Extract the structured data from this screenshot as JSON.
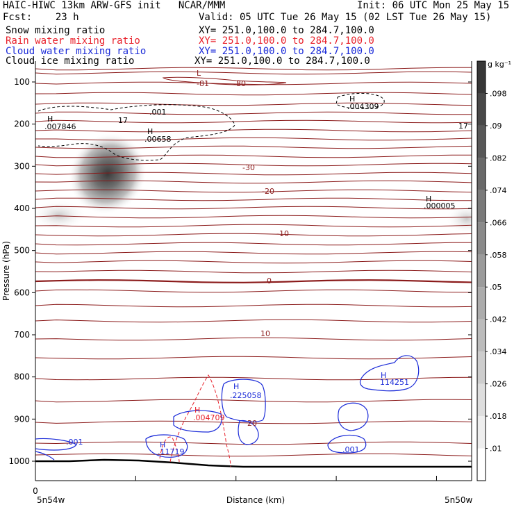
{
  "header": {
    "line1_left": "HAIC-HIWC 13km ARW-GFS init   NCAR/MMM",
    "line1_right": "Init: 06 UTC Mon 25 May 15",
    "line2_left": "Fcst:    23 h",
    "line2_right": "Valid: 05 UTC Tue 26 May 15 (02 LST Tue 26 May 15)",
    "fields": [
      {
        "name": "Snow mixing ratio",
        "xy": "XY= 251.0,100.0 to 284.7,100.0",
        "color": "#000000"
      },
      {
        "name": "Rain water mixing ratio",
        "xy": "XY= 251.0,100.0 to 284.7,100.0",
        "color": "#e8202a"
      },
      {
        "name": "Cloud water mixing ratio",
        "xy": "XY= 251.0,100.0 to 284.7,100.0",
        "color": "#1a2ad8"
      },
      {
        "name": "Cloud ice mixing ratio",
        "xy": "XY= 251.0,100.0 to 284.7,100.0",
        "color": "#000000"
      }
    ]
  },
  "chart_data": {
    "type": "heatmap",
    "xlabel": "Distance (km)",
    "ylabel": "Pressure (hPa)",
    "x_tick_left": "0",
    "x_endpoints": [
      "5n54w",
      "5n50w"
    ],
    "y_ticks": [
      100,
      200,
      300,
      400,
      500,
      600,
      700,
      800,
      900,
      1000
    ],
    "ylim": [
      1050,
      50
    ],
    "colorbar": {
      "unit": "g kg⁻¹",
      "levels": [
        0.01,
        0.018,
        0.026,
        0.034,
        0.042,
        0.05,
        0.058,
        0.066,
        0.074,
        0.082,
        0.09,
        0.098
      ],
      "labels": [
        ".01",
        ".018",
        ".026",
        ".034",
        ".042",
        ".05",
        ".058",
        ".066",
        ".074",
        ".082",
        ".09",
        ".098"
      ]
    },
    "temperature_contours": [
      -80,
      -30,
      -20,
      -10,
      0,
      10,
      20
    ],
    "labels": [
      {
        "text": "L",
        "color": "#8b1a1a"
      },
      {
        "text": "-81",
        "color": "#8b1a1a"
      },
      {
        "text": "-80",
        "color": "#8b1a1a"
      },
      {
        "text": "-30",
        "color": "#8b1a1a"
      },
      {
        "text": "-20",
        "color": "#8b1a1a"
      },
      {
        "text": "-10",
        "color": "#8b1a1a"
      },
      {
        "text": "0",
        "color": "#8b1a1a"
      },
      {
        "text": "10",
        "color": "#8b1a1a"
      },
      {
        "text": "20",
        "color": "#8b1a1a"
      },
      {
        "text": "17",
        "color": "#000000"
      },
      {
        "text": "17",
        "color": "#000000"
      },
      {
        "text": "H",
        "color": "#000000"
      },
      {
        "text": ".007846",
        "color": "#000000"
      },
      {
        "text": ".001",
        "color": "#000000"
      },
      {
        "text": "H",
        "color": "#000000"
      },
      {
        "text": ".00658",
        "color": "#000000"
      },
      {
        "text": "H",
        "color": "#000000"
      },
      {
        "text": ".004309",
        "color": "#000000"
      },
      {
        "text": "H",
        "color": "#000000"
      },
      {
        "text": ".000005",
        "color": "#000000"
      },
      {
        "text": "H",
        "color": "#1a2ad8"
      },
      {
        "text": ".225058",
        "color": "#1a2ad8"
      },
      {
        "text": "H",
        "color": "#1a2ad8"
      },
      {
        "text": "114251",
        "color": "#1a2ad8"
      },
      {
        "text": "H",
        "color": "#e8202a"
      },
      {
        "text": ".004709",
        "color": "#e8202a"
      },
      {
        "text": "H",
        "color": "#1a2ad8"
      },
      {
        "text": ".11719",
        "color": "#1a2ad8"
      },
      {
        "text": ".001",
        "color": "#1a2ad8"
      },
      {
        "text": ".001",
        "color": "#1a2ad8"
      }
    ]
  }
}
